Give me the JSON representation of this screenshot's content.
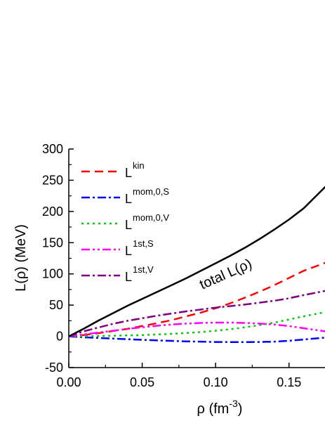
{
  "chart_data": {
    "type": "line",
    "title": "",
    "xlabel": "ρ (fm",
    "xlabel_sup": "-3",
    "xlabel_close": ")",
    "ylabel": "L(ρ) (MeV)",
    "xlim": [
      0.0,
      0.175
    ],
    "ylim": [
      -50,
      300
    ],
    "x_ticks": [
      0.0,
      0.05,
      0.1,
      0.15
    ],
    "x_tick_labels": [
      "0.00",
      "0.05",
      "0.10",
      "0.15"
    ],
    "y_ticks": [
      -50,
      0,
      50,
      100,
      150,
      200,
      250,
      300
    ],
    "y_tick_labels": [
      "-50",
      "0",
      "50",
      "100",
      "150",
      "200",
      "250",
      "300"
    ],
    "grid": false,
    "legend_position": "top-left",
    "annotation": "total L(ρ)",
    "x": [
      0,
      0.01,
      0.02,
      0.03,
      0.04,
      0.05,
      0.06,
      0.07,
      0.08,
      0.09,
      0.1,
      0.11,
      0.12,
      0.13,
      0.14,
      0.15,
      0.16,
      0.175
    ],
    "series": [
      {
        "name": "L",
        "sup": "kin",
        "color": "#ff0000",
        "dash": "12,7",
        "width": 2.5,
        "in_legend": true,
        "values": [
          0,
          2,
          5,
          8.5,
          12,
          16.5,
          21,
          26,
          32,
          38,
          45,
          53,
          62,
          71.5,
          82,
          93.5,
          105,
          118
        ]
      },
      {
        "name": "L",
        "sup": "mom,0,S",
        "color": "#0000ff",
        "dash": "12,4,3,4",
        "width": 2.5,
        "in_legend": true,
        "values": [
          0,
          -1.5,
          -2.5,
          -3.5,
          -4.5,
          -5.5,
          -6.5,
          -7.2,
          -8,
          -8.5,
          -9,
          -9.2,
          -9.2,
          -9,
          -8.5,
          -7,
          -5,
          -2
        ]
      },
      {
        "name": "L",
        "sup": "mom,0,V",
        "color": "#00cc00",
        "dash": "3,5",
        "width": 2.5,
        "in_legend": true,
        "values": [
          0,
          0,
          0.5,
          1,
          1.5,
          2,
          3,
          4,
          5.5,
          7,
          9,
          11.5,
          14.5,
          18,
          22,
          27,
          32,
          39
        ]
      },
      {
        "name": "L",
        "sup": "1st,S",
        "color": "#ff00ff",
        "dash": "12,4,3,4,3,4",
        "width": 2.5,
        "in_legend": true,
        "values": [
          0,
          3,
          6,
          9,
          12,
          14.5,
          17,
          19,
          20.5,
          21.5,
          22,
          22,
          21.5,
          20.5,
          19,
          16.5,
          13,
          8
        ]
      },
      {
        "name": "L",
        "sup": "1st,V",
        "color": "#800080",
        "dash": "12,4,3,4",
        "width": 2.5,
        "in_legend": true,
        "values": [
          0,
          8,
          14,
          20,
          25,
          29,
          33,
          36.5,
          40,
          43,
          46,
          48.5,
          51,
          54,
          57,
          61,
          66,
          73
        ]
      },
      {
        "name": "total",
        "sup": "",
        "color": "#000000",
        "dash": "",
        "width": 2.5,
        "in_legend": false,
        "values": [
          0,
          12,
          25,
          37,
          49,
          60,
          71,
          82,
          93,
          105,
          117,
          129,
          142,
          156,
          171,
          187,
          205,
          240
        ]
      }
    ]
  }
}
